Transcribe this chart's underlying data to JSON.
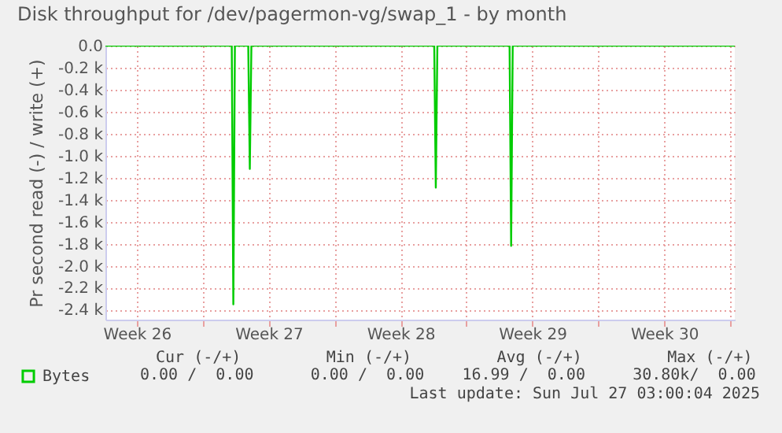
{
  "chart_data": {
    "type": "line",
    "title": "Disk throughput for /dev/pagermon-vg/swap_1 - by month",
    "ylabel": "Pr second read (-) / write (+)",
    "series": [
      {
        "name": "Bytes",
        "color": "#00cc00",
        "x": [
          "2025-06-24T20:00",
          "2025-07-01T13:00",
          "2025-07-01T15:00",
          "2025-07-01T17:00",
          "2025-07-02T10:00",
          "2025-07-02T12:00",
          "2025-07-02T14:00",
          "2025-07-12T07:00",
          "2025-07-12T09:00",
          "2025-07-12T11:00",
          "2025-07-16T07:00",
          "2025-07-16T09:00",
          "2025-07-16T11:00",
          "2025-07-28T06:00"
        ],
        "values": [
          0,
          0,
          -2350,
          0,
          0,
          -1120,
          0,
          0,
          -1290,
          0,
          0,
          -1820,
          0,
          0
        ]
      }
    ],
    "xlim": [
      "2025-06-24T20:00",
      "2025-07-28T06:00"
    ],
    "xticks": [
      {
        "value": "2025-06-26T12:00",
        "label": "Week 26"
      },
      {
        "value": "2025-06-30T00:00",
        "label": null
      },
      {
        "value": "2025-07-03T12:00",
        "label": "Week 27"
      },
      {
        "value": "2025-07-07T00:00",
        "label": null
      },
      {
        "value": "2025-07-10T12:00",
        "label": "Week 28"
      },
      {
        "value": "2025-07-14T00:00",
        "label": null
      },
      {
        "value": "2025-07-17T12:00",
        "label": "Week 29"
      },
      {
        "value": "2025-07-21T00:00",
        "label": null
      },
      {
        "value": "2025-07-24T12:00",
        "label": "Week 30"
      },
      {
        "value": "2025-07-28T00:00",
        "label": null
      }
    ],
    "ylim": [
      -2490,
      0
    ],
    "yticks": [
      {
        "value": 0,
        "label": "0.0"
      },
      {
        "value": -200,
        "label": "-0.2 k"
      },
      {
        "value": -400,
        "label": "-0.4 k"
      },
      {
        "value": -600,
        "label": "-0.6 k"
      },
      {
        "value": -800,
        "label": "-0.8 k"
      },
      {
        "value": -1000,
        "label": "-1.0 k"
      },
      {
        "value": -1200,
        "label": "-1.2 k"
      },
      {
        "value": -1400,
        "label": "-1.4 k"
      },
      {
        "value": -1600,
        "label": "-1.6 k"
      },
      {
        "value": -1800,
        "label": "-1.8 k"
      },
      {
        "value": -2000,
        "label": "-2.0 k"
      },
      {
        "value": -2200,
        "label": "-2.2 k"
      },
      {
        "value": -2400,
        "label": "-2.4 k"
      }
    ],
    "grid": true,
    "legend": "bottom left",
    "marker": "none",
    "line_style": "solid",
    "annotations": [
      "Cur (-/+)         Min (-/+)         Avg (-/+)         Max (-/+)",
      "0.00 /  0.00      0.00 /  0.00    16.99 /  0.00     30.80k/  0.00",
      "Last update: Sun Jul 27 03:00:04 2025"
    ]
  }
}
